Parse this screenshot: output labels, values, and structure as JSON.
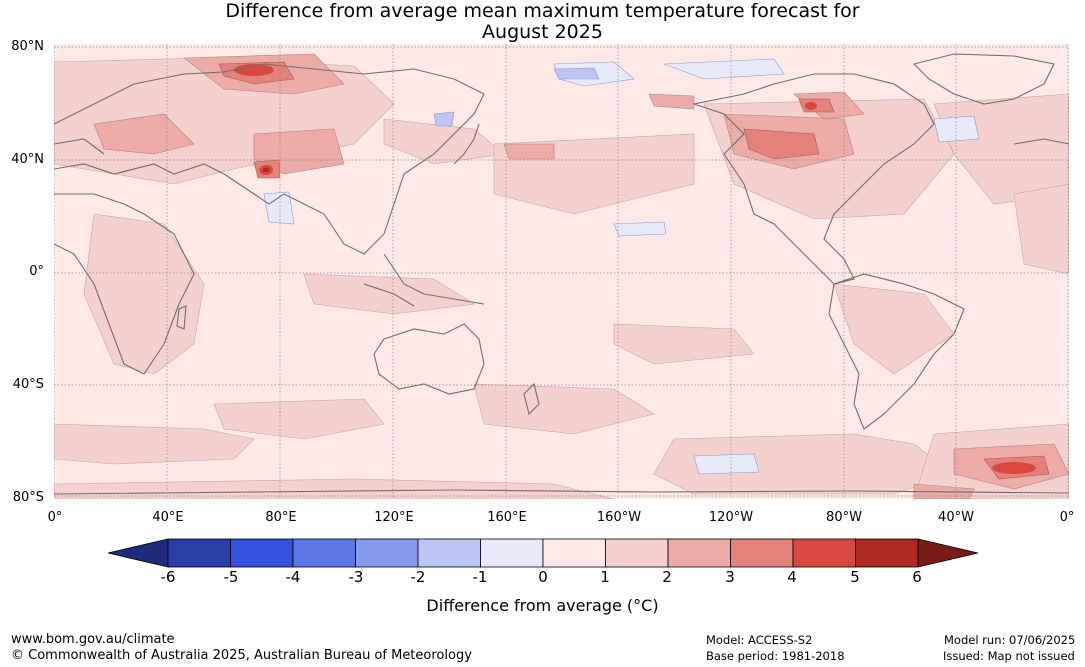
{
  "title_line1": "Difference from average mean maximum temperature forecast for",
  "title_line2": "August 2025",
  "lat_labels": [
    "80°N",
    "40°N",
    "0°",
    "40°S",
    "80°S"
  ],
  "lon_labels": [
    "0°",
    "40°E",
    "80°E",
    "120°E",
    "160°E",
    "160°W",
    "120°W",
    "80°W",
    "40°W",
    "0°"
  ],
  "colorbar": {
    "ticks": [
      "-6",
      "-5",
      "-4",
      "-3",
      "-2",
      "-1",
      "0",
      "1",
      "2",
      "3",
      "4",
      "5",
      "6"
    ],
    "colors": [
      "#2b3da6",
      "#3452e0",
      "#5c76e6",
      "#8799ec",
      "#bcc5f3",
      "#e6eafb",
      "#fce9e8",
      "#f4d0ce",
      "#ecaba6",
      "#e3817b",
      "#d9483f",
      "#ad2a22"
    ],
    "under_color": "#1f2a7a",
    "over_color": "#7a1b16",
    "label": "Difference from average (°C)"
  },
  "footer": {
    "website": "www.bom.gov.au/climate",
    "copyright": "© Commonwealth of Australia 2025, Australian Bureau of Meteorology",
    "model": "Model: ACCESS-S2",
    "base_period": "Base period: 1981-2018",
    "model_run": "Model run: 07/06/2025",
    "issued": "Issued: Map not issued"
  }
}
